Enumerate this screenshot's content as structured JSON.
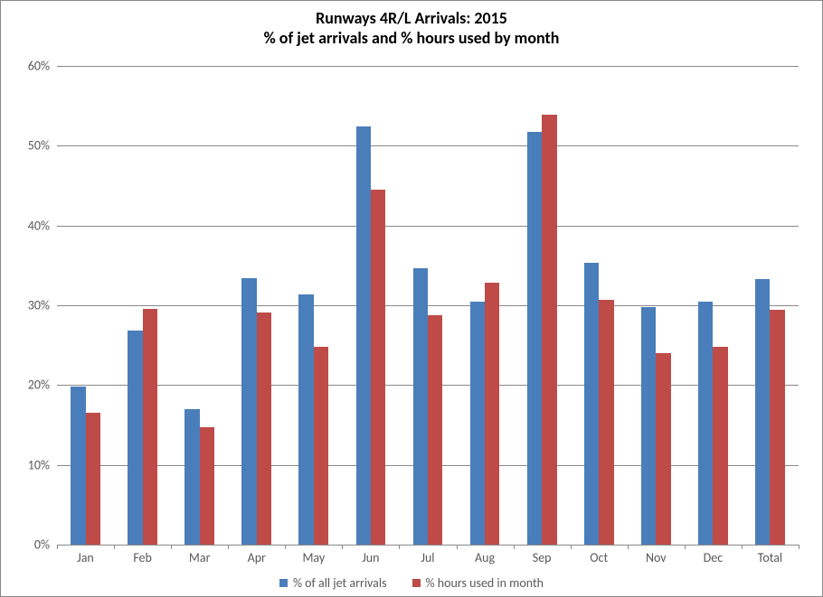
{
  "chart": {
    "type": "bar",
    "title_line1": "Runways 4R/L Arrivals:  2015",
    "title_line2": "% of jet arrivals and  % hours used by month",
    "title_fontsize": 18,
    "title_weight": "bold",
    "background_color": "#ffffff",
    "grid_color": "#898989",
    "axis_label_color": "#595959",
    "axis_label_fontsize": 14,
    "ylim": [
      0,
      60
    ],
    "ytick_step": 10,
    "ytick_suffix": "%",
    "categories": [
      "Jan",
      "Feb",
      "Mar",
      "Apr",
      "May",
      "Jun",
      "Jul",
      "Aug",
      "Sep",
      "Oct",
      "Nov",
      "Dec",
      "Total"
    ],
    "series": [
      {
        "name": "% of all jet arrivals",
        "color": "#4a7ebb",
        "values": [
          19.8,
          26.8,
          17.0,
          33.4,
          31.4,
          52.4,
          34.6,
          30.5,
          51.7,
          35.3,
          29.8,
          30.5,
          33.3
        ]
      },
      {
        "name": "% hours used in month",
        "color": "#be4b48",
        "values": [
          16.5,
          29.5,
          14.7,
          29.1,
          24.8,
          44.5,
          28.7,
          32.8,
          53.9,
          30.7,
          24.0,
          24.8,
          29.4
        ]
      }
    ],
    "bar_cluster_width_ratio": 0.52,
    "plot_area_border_color": "#898989",
    "legend": {
      "position": "bottom",
      "fontsize": 14,
      "swatch_size": 9
    }
  }
}
